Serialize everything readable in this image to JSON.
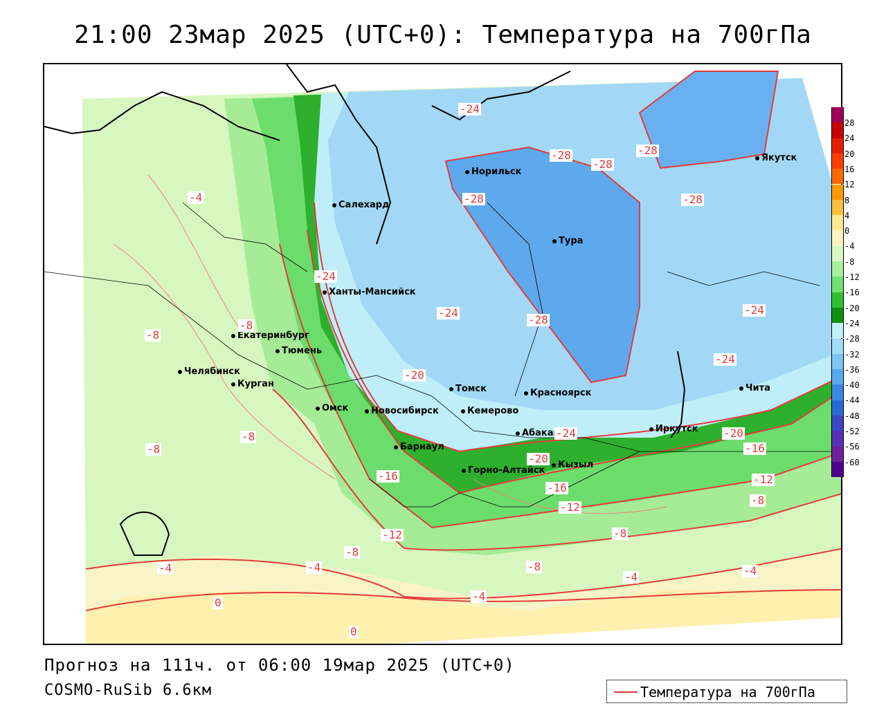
{
  "title": "21:00 23мар 2025 (UTC+0): Температура на 700гПа",
  "footer": {
    "forecast": "Прогноз на 111ч. от 06:00 19мар 2025 (UTC+0)",
    "model": "COSMO-RuSib 6.6км"
  },
  "legend": {
    "label": "Температура на 700гПа",
    "line_color": "#e33b3b"
  },
  "colorbar": {
    "ticks": [
      "28",
      "24",
      "20",
      "16",
      "12",
      "8",
      "4",
      "0",
      "-4",
      "-8",
      "-12",
      "-16",
      "-20",
      "-24",
      "-28",
      "-32",
      "-36",
      "-40",
      "-44",
      "-48",
      "-52",
      "-56",
      "-60"
    ],
    "colors": [
      "#a0005a",
      "#c80000",
      "#e61e00",
      "#ff4000",
      "#ff6a00",
      "#ff9a00",
      "#ffc040",
      "#ffe890",
      "#fff4c0",
      "#d8f8c0",
      "#a8f09a",
      "#70e070",
      "#30c030",
      "#109010",
      "#c0f0f8",
      "#a0dcf8",
      "#80c4f4",
      "#5aa8ee",
      "#3a88e4",
      "#2a6ad8",
      "#3a48c8",
      "#5a30b8",
      "#7020a0",
      "#500090"
    ]
  },
  "cities": [
    {
      "name": "Норильск"
    },
    {
      "name": "Якутск"
    },
    {
      "name": "Салехард"
    },
    {
      "name": "Тура"
    },
    {
      "name": "Ханты-Мансийск"
    },
    {
      "name": "Екатеринбург"
    },
    {
      "name": "Тюмень"
    },
    {
      "name": "Челябинск"
    },
    {
      "name": "Курган"
    },
    {
      "name": "Омск"
    },
    {
      "name": "Новосибирск"
    },
    {
      "name": "Томск"
    },
    {
      "name": "Кемерово"
    },
    {
      "name": "Красноярск"
    },
    {
      "name": "Барнаул"
    },
    {
      "name": "Абакан"
    },
    {
      "name": "Горно-Алтайск"
    },
    {
      "name": "Кызыл"
    },
    {
      "name": "Иркутск"
    },
    {
      "name": "Чита"
    }
  ],
  "contour_labels": [
    "-24",
    "-28",
    "-28",
    "-28",
    "-28",
    "-28",
    "-4",
    "-24",
    "-24",
    "-28",
    "-24",
    "-8",
    "-8",
    "-24",
    "-20",
    "-8",
    "-8",
    "-24",
    "-20",
    "-16",
    "-16",
    "-20",
    "-16",
    "-12",
    "-12",
    "-8",
    "-12",
    "-8",
    "-8",
    "-4",
    "-4",
    "-8",
    "-4",
    "-4",
    "-4",
    "0",
    "0"
  ]
}
